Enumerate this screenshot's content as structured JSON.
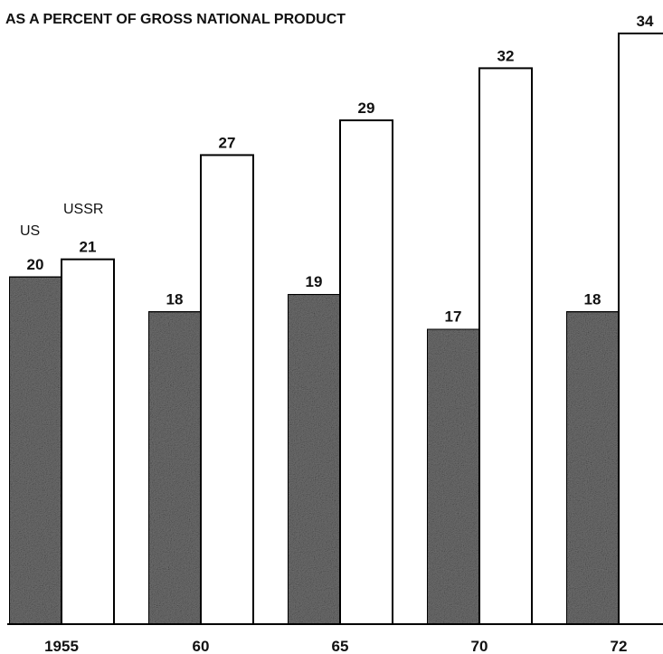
{
  "chart_data": {
    "type": "bar",
    "title": "AS A PERCENT OF GROSS NATIONAL PRODUCT",
    "categories": [
      "1955",
      "60",
      "65",
      "70",
      "72"
    ],
    "series": [
      {
        "name": "US",
        "values": [
          20,
          18,
          19,
          17,
          18
        ],
        "fill": "pattern-dark-gray"
      },
      {
        "name": "USSR",
        "values": [
          21,
          27,
          29,
          32,
          34
        ],
        "fill": "#ffffff"
      }
    ],
    "data_labels": true,
    "xlabel": "",
    "ylabel": "",
    "ylim": [
      0,
      34
    ],
    "grid": false,
    "legend": "labels above first category group"
  }
}
